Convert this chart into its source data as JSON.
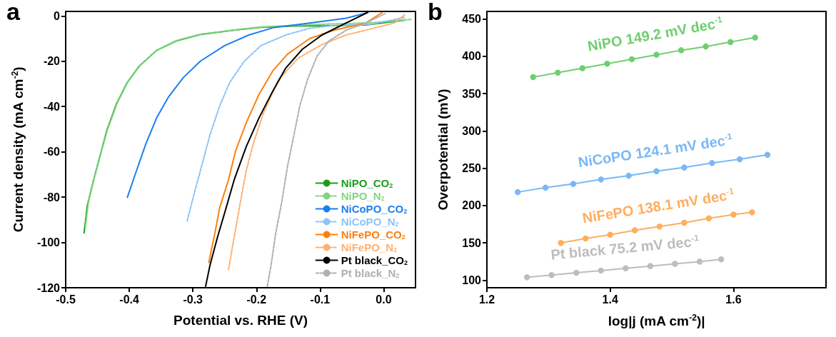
{
  "chart_data": [
    {
      "type": "line",
      "title": "a",
      "xlabel": "Potential vs. RHE (V)",
      "ylabel": "Current density (mA cm$^{-2}$)",
      "xlim": [
        -0.5,
        0.05
      ],
      "xticks": [
        -0.5,
        -0.4,
        -0.3,
        -0.2,
        -0.1,
        {
          "value": 0,
          "label": "0.0"
        }
      ],
      "ylim": [
        -120,
        2
      ],
      "yticks": [
        -120,
        -100,
        -80,
        -60,
        -40,
        -20,
        0
      ],
      "grid": false,
      "legend": "bottom right",
      "marker": "none",
      "series": [
        {
          "name": "NiPO_CO$_{2}$",
          "color": "#1a9e1a",
          "line_style": "solid",
          "x": [
            -0.471,
            -0.466,
            -0.456,
            -0.447,
            -0.435,
            -0.42,
            -0.403,
            -0.384,
            -0.357,
            -0.326,
            -0.288,
            -0.231,
            -0.193,
            -0.135,
            -0.097,
            -0.028,
            0.033
          ],
          "values": [
            -95.8,
            -83.8,
            -72.3,
            -62.8,
            -50.3,
            -38.7,
            -29.3,
            -22.0,
            -15.2,
            -11.0,
            -8.2,
            -6.1,
            -5.0,
            -4.4,
            -4.4,
            -4.0,
            -1.9
          ]
        },
        {
          "name": "NiPO_N$_{2}$",
          "color": "#7fd67f",
          "line_style": "dashed",
          "x": [
            -0.469,
            -0.464,
            -0.455,
            -0.446,
            -0.434,
            -0.419,
            -0.402,
            -0.383,
            -0.356,
            -0.325,
            -0.287,
            -0.23,
            -0.19,
            -0.13,
            -0.09,
            -0.02,
            0.045
          ],
          "values": [
            -93.0,
            -82.0,
            -71.5,
            -62.0,
            -50.0,
            -38.5,
            -29.0,
            -21.8,
            -15.0,
            -10.8,
            -8.0,
            -6.0,
            -4.8,
            -4.0,
            -3.6,
            -3.0,
            -1.5
          ]
        },
        {
          "name": "NiCoPO_CO$_{2}$",
          "color": "#1a7ff0",
          "line_style": "solid",
          "x": [
            -0.403,
            -0.391,
            -0.374,
            -0.357,
            -0.338,
            -0.315,
            -0.288,
            -0.25,
            -0.212,
            -0.174,
            -0.116,
            -0.059,
            -0.025
          ],
          "values": [
            -80.1,
            -70.2,
            -56.5,
            -45.0,
            -35.6,
            -27.2,
            -19.9,
            -13.1,
            -8.4,
            -5.2,
            -3.1,
            -1.0,
            1.5
          ]
        },
        {
          "name": "NiCoPO_N$_{2}$",
          "color": "#8cc4f7",
          "line_style": "dashed",
          "x": [
            -0.309,
            -0.3,
            -0.286,
            -0.273,
            -0.258,
            -0.242,
            -0.219,
            -0.193,
            -0.154,
            -0.116,
            -0.078,
            -0.021,
            0.033
          ],
          "values": [
            -90.6,
            -80.6,
            -66.0,
            -52.4,
            -39.8,
            -29.3,
            -19.9,
            -13.1,
            -8.4,
            -5.4,
            -4.2,
            -3.7,
            -0.7
          ]
        },
        {
          "name": "NiFePO_CO$_{2}$",
          "color": "#ff7f0e",
          "line_style": "solid",
          "x": [
            -0.275,
            -0.265,
            -0.258,
            -0.244,
            -0.233,
            -0.216,
            -0.196,
            -0.174,
            -0.151,
            -0.116,
            -0.078,
            -0.028,
            -0.002
          ],
          "values": [
            -108.9,
            -95.3,
            -84.8,
            -72.3,
            -59.7,
            -47.1,
            -34.6,
            -24.1,
            -16.8,
            -9.9,
            -6.3,
            -3.1,
            1.6
          ]
        },
        {
          "name": "NiFePO_N$_{2}$",
          "color": "#ffb070",
          "line_style": "dashed",
          "x": [
            -0.244,
            -0.235,
            -0.227,
            -0.216,
            -0.204,
            -0.189,
            -0.166,
            -0.135,
            -0.097,
            -0.059,
            -0.021,
            0.017,
            0.033
          ],
          "values": [
            -112.0,
            -97.4,
            -84.8,
            -68.1,
            -55.5,
            -42.9,
            -28.3,
            -18.8,
            -12.6,
            -8.4,
            -5.8,
            -3.1,
            0.5
          ]
        },
        {
          "name": "Pt black_CO$_{2}$",
          "color": "#000000",
          "line_style": "solid",
          "x": [
            -0.28,
            -0.273,
            -0.261,
            -0.25,
            -0.235,
            -0.216,
            -0.196,
            -0.177,
            -0.154,
            -0.128,
            -0.097,
            -0.059,
            -0.025
          ],
          "values": [
            -119.4,
            -109.9,
            -97.4,
            -86.9,
            -72.3,
            -57.6,
            -45.0,
            -34.6,
            -23.0,
            -14.7,
            -8.4,
            -3.1,
            1.6
          ]
        },
        {
          "name": "Pt black_N$_{2}$",
          "color": "#b0b0b0",
          "line_style": "dashed",
          "x": [
            -0.183,
            -0.177,
            -0.17,
            -0.16,
            -0.151,
            -0.141,
            -0.132,
            -0.12,
            -0.105,
            -0.086,
            -0.059,
            -0.028,
            0.002
          ],
          "values": [
            -119.4,
            -109.9,
            -96.3,
            -81.7,
            -66.0,
            -52.4,
            -39.8,
            -28.3,
            -17.8,
            -11.0,
            -6.3,
            -3.1,
            1.0
          ]
        }
      ]
    },
    {
      "type": "line",
      "title": "b",
      "xlabel": "log|j (mA cm$^{-2}$)|",
      "ylabel": "Overpotential (mV)",
      "xlim": [
        1.2,
        1.75
      ],
      "xticks": [
        1.2,
        1.4,
        1.6
      ],
      "ylim": [
        90,
        460
      ],
      "yticks": [
        100,
        150,
        200,
        250,
        300,
        350,
        400,
        450
      ],
      "grid": false,
      "legend": false,
      "marker": "circle",
      "series": [
        {
          "name": "NiPO 149.2 mV dec$^{-1}$",
          "color": "#6fcf6f",
          "x": [
            1.275,
            1.315,
            1.355,
            1.395,
            1.435,
            1.475,
            1.515,
            1.555,
            1.595,
            1.635
          ],
          "values": [
            372,
            378,
            384,
            390,
            396,
            402,
            408,
            413,
            419,
            425
          ]
        },
        {
          "name": "NiCoPO 124.1 mV dec$^{-1}$",
          "color": "#7ab8f5",
          "x": [
            1.25,
            1.295,
            1.34,
            1.385,
            1.43,
            1.475,
            1.52,
            1.565,
            1.61,
            1.655
          ],
          "values": [
            218,
            224,
            229,
            235,
            240,
            246,
            251,
            257,
            262,
            268
          ]
        },
        {
          "name": "NiFePO 138.1 mV dec$^{-1}$",
          "color": "#ffae5e",
          "x": [
            1.32,
            1.36,
            1.4,
            1.44,
            1.48,
            1.52,
            1.56,
            1.6,
            1.63
          ],
          "values": [
            150,
            156,
            161,
            167,
            172,
            177,
            183,
            188,
            191
          ]
        },
        {
          "name": "Pt black 75.2 mV dec$^{-1}$",
          "color": "#bdbdbd",
          "x": [
            1.265,
            1.305,
            1.345,
            1.385,
            1.425,
            1.465,
            1.505,
            1.545,
            1.58
          ],
          "values": [
            104,
            107,
            110,
            113,
            116,
            119,
            122,
            125,
            128
          ]
        }
      ]
    }
  ]
}
